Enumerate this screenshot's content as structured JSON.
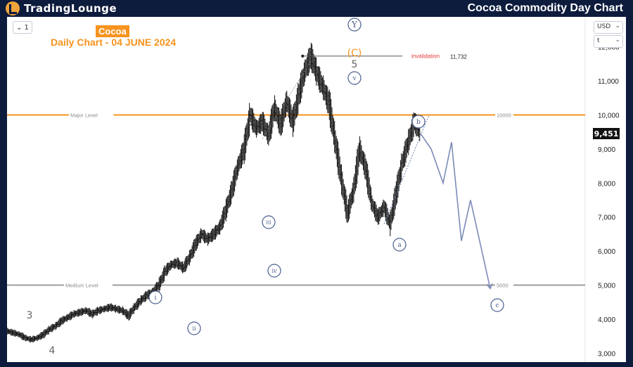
{
  "header": {
    "logo_text": "TradingLounge",
    "title": "Cocoa Commodity Day Chart"
  },
  "toolbar": {
    "interval_value": "1",
    "currency_value": "USD",
    "scale_value": "t"
  },
  "chart_info": {
    "symbol": "Cocoa",
    "subtitle": "Daily Chart - 04 JUNE 2024"
  },
  "colors": {
    "background": "#0d1b3d",
    "accent": "#f7931e",
    "invalidation": "#e53935",
    "wave_label": "#4a5d8f",
    "candle": "#111111"
  },
  "chart_data": {
    "type": "line",
    "title": "Cocoa Commodity Day Chart",
    "ylim": [
      2800,
      12800
    ],
    "y_scale": "linear",
    "grid": false,
    "y_ticks": [
      "12,000",
      "11,000",
      "10,000",
      "9,000",
      "8,000",
      "7,000",
      "6,000",
      "5,000",
      "4,000",
      "3,000"
    ],
    "y_tick_values": [
      12000,
      11000,
      10000,
      9000,
      8000,
      7000,
      6000,
      5000,
      4000,
      3000
    ],
    "current_price": "9,451",
    "current_price_value": 9451,
    "price_series": [
      3650,
      3600,
      3550,
      3450,
      3400,
      3450,
      3550,
      3700,
      3800,
      3950,
      4050,
      4150,
      4200,
      4250,
      4150,
      4250,
      4300,
      4350,
      4300,
      4250,
      4100,
      4350,
      4550,
      4700,
      4800,
      5000,
      5400,
      5600,
      5650,
      5500,
      5800,
      6200,
      6500,
      6350,
      6500,
      6700,
      7200,
      7800,
      8500,
      9000,
      10000,
      9600,
      9800,
      9400,
      10200,
      9700,
      10400,
      9800,
      10600,
      11300,
      11732,
      11200,
      10800,
      10300,
      9200,
      8100,
      7100,
      7800,
      9000,
      8400,
      7400,
      7000,
      7300,
      6800,
      7700,
      8600,
      9200,
      9800,
      9451
    ],
    "projection": [
      9451,
      9000,
      8000,
      9200,
      6300,
      7500,
      4900
    ],
    "levels": [
      {
        "name": "Major Level",
        "value": 10000,
        "label": "10000",
        "color": "#f7931e"
      },
      {
        "name": "Medium Level",
        "value": 5000,
        "label": "5000",
        "color": "#9e9e9e"
      }
    ],
    "invalidation": {
      "label": "invalidation",
      "value_text": "11,732",
      "value": 11732
    },
    "wave_labels": {
      "main_3": "3",
      "main_4": "4",
      "main_5": "5",
      "y": "Y",
      "c_orange": "(C)",
      "w_i": "i",
      "w_ii": "ii",
      "w_iii": "iii",
      "w_iv": "iv",
      "w_v": "v",
      "w_a": "a",
      "w_b": "b",
      "w_c": "c"
    }
  }
}
